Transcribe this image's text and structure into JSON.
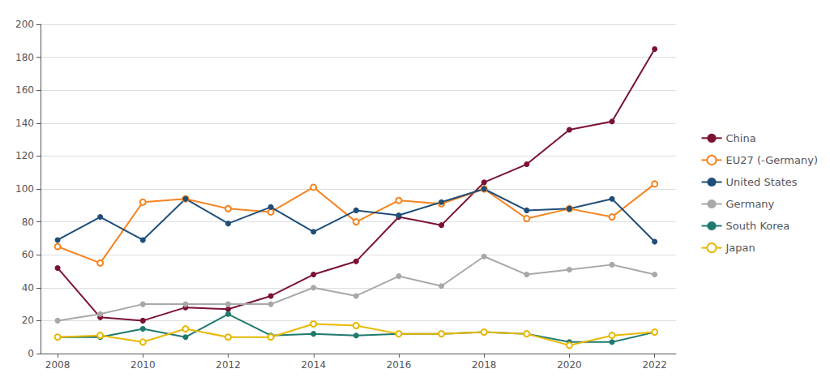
{
  "chart_data": {
    "type": "line",
    "x": [
      2008,
      2009,
      2010,
      2011,
      2012,
      2013,
      2014,
      2015,
      2016,
      2017,
      2018,
      2019,
      2020,
      2021,
      2022
    ],
    "series": [
      {
        "name": "China",
        "color": "#7b1232",
        "marker": "circle",
        "values": [
          52,
          22,
          20,
          28,
          27,
          35,
          48,
          56,
          83,
          78,
          104,
          115,
          136,
          141,
          185
        ]
      },
      {
        "name": "EU27 (-Germany)",
        "color": "#f5841f",
        "marker": "open circle",
        "values": [
          65,
          55,
          92,
          94,
          88,
          86,
          101,
          80,
          93,
          91,
          100,
          82,
          88,
          83,
          103
        ]
      },
      {
        "name": "United States",
        "color": "#1f4e79",
        "marker": "circle",
        "values": [
          69,
          83,
          69,
          94,
          79,
          89,
          74,
          87,
          84,
          92,
          100,
          87,
          88,
          94,
          68
        ]
      },
      {
        "name": "Germany",
        "color": "#a8a8a8",
        "marker": "circle",
        "values": [
          20,
          24,
          30,
          30,
          30,
          30,
          40,
          35,
          47,
          41,
          59,
          48,
          51,
          54,
          48
        ]
      },
      {
        "name": "South Korea",
        "color": "#1f7a6e",
        "marker": "circle",
        "values": [
          10,
          10,
          15,
          10,
          24,
          11,
          12,
          11,
          12,
          12,
          13,
          12,
          7,
          7,
          13
        ]
      },
      {
        "name": "Japan",
        "color": "#e8b800",
        "marker": "open circle",
        "values": [
          10,
          11,
          7,
          15,
          10,
          10,
          18,
          17,
          12,
          12,
          13,
          12,
          5,
          11,
          13
        ]
      }
    ],
    "xlim": [
      2007.6,
      2022.5
    ],
    "xticks": [
      2008,
      2010,
      2012,
      2014,
      2016,
      2018,
      2020,
      2022
    ],
    "ylim": [
      0,
      200
    ],
    "yticks": [
      0,
      20,
      40,
      60,
      80,
      100,
      120,
      140,
      160,
      180,
      200
    ],
    "grid": "y",
    "legend": "right"
  }
}
